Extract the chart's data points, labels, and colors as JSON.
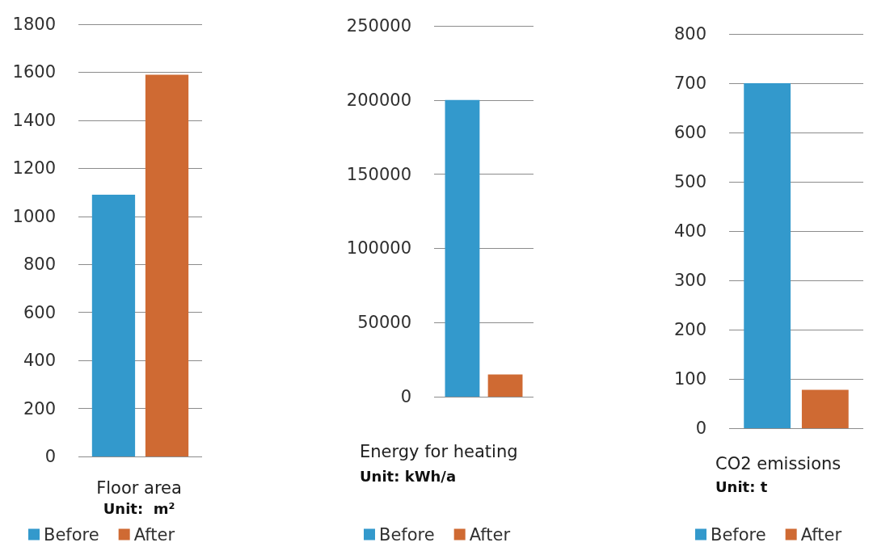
{
  "chart_data": [
    {
      "type": "bar",
      "xlabel": "Floor area",
      "annotations": [
        "Unit:  m²"
      ],
      "categories": [
        null
      ],
      "series": [
        {
          "name": "Before",
          "color": "#3399cc",
          "values": [
            1090
          ]
        },
        {
          "name": "After",
          "color": "#cf6a33",
          "values": [
            1590
          ]
        }
      ],
      "ylim": [
        0,
        1800
      ],
      "yticks": [
        0,
        200,
        400,
        600,
        800,
        1000,
        1200,
        1400,
        1600,
        1800
      ],
      "grid": "y",
      "legend": "bottom"
    },
    {
      "type": "bar",
      "xlabel": "Energy for heating",
      "annotations": [
        "Unit: kWh/a"
      ],
      "categories": [
        null
      ],
      "series": [
        {
          "name": "Before",
          "color": "#3399cc",
          "values": [
            200000
          ]
        },
        {
          "name": "After",
          "color": "#cf6a33",
          "values": [
            15000
          ]
        }
      ],
      "ylim": [
        0,
        250000
      ],
      "yticks": [
        0,
        50000,
        100000,
        150000,
        200000,
        250000
      ],
      "grid": "y",
      "legend": "bottom"
    },
    {
      "type": "bar",
      "xlabel": "CO2 emissions",
      "annotations": [
        "Unit: t"
      ],
      "categories": [
        null
      ],
      "series": [
        {
          "name": "Before",
          "color": "#3399cc",
          "values": [
            700
          ]
        },
        {
          "name": "After",
          "color": "#cf6a33",
          "values": [
            78
          ]
        }
      ],
      "ylim": [
        0,
        800
      ],
      "yticks": [
        0,
        100,
        200,
        300,
        400,
        500,
        600,
        700,
        800
      ],
      "grid": "y",
      "legend": "bottom"
    }
  ]
}
